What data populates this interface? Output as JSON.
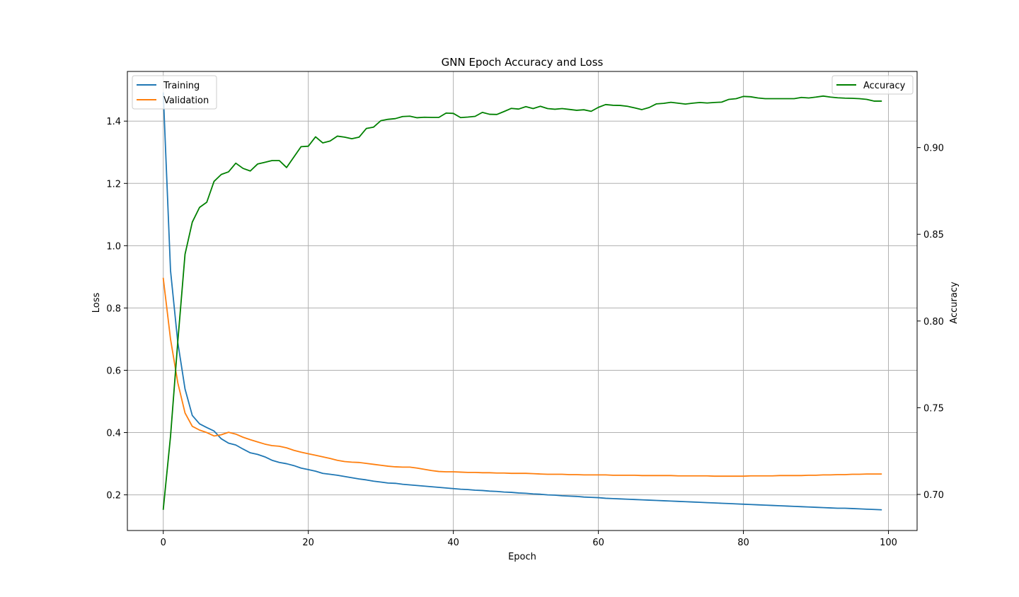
{
  "chart_data": {
    "type": "line",
    "title": "GNN Epoch Accuracy and Loss",
    "xlabel": "Epoch",
    "ylabel_left": "Loss",
    "ylabel_right": "Accuracy",
    "xlim": [
      -4.95,
      103.95
    ],
    "ylim_left": [
      0.0855,
      1.5595
    ],
    "ylim_right": [
      0.6792,
      0.9439
    ],
    "xticks": [
      0,
      20,
      40,
      60,
      80,
      100
    ],
    "yticks_left": [
      0.2,
      0.4,
      0.6,
      0.8,
      1.0,
      1.2,
      1.4
    ],
    "yticks_right": [
      0.7,
      0.75,
      0.8,
      0.85,
      0.9
    ],
    "grid": true,
    "legend_left": {
      "placement": "top-left",
      "entries": [
        "Training",
        "Validation"
      ]
    },
    "legend_right": {
      "placement": "top-right",
      "entries": [
        "Accuracy"
      ]
    },
    "series": [
      {
        "name": "Training",
        "axis": "left",
        "color": "#1f77b4",
        "values": [
          1.49,
          0.92,
          0.69,
          0.54,
          0.455,
          0.428,
          0.416,
          0.405,
          0.38,
          0.366,
          0.36,
          0.347,
          0.335,
          0.33,
          0.322,
          0.311,
          0.304,
          0.3,
          0.294,
          0.286,
          0.281,
          0.276,
          0.269,
          0.266,
          0.263,
          0.259,
          0.255,
          0.251,
          0.248,
          0.244,
          0.241,
          0.238,
          0.237,
          0.234,
          0.232,
          0.23,
          0.228,
          0.226,
          0.224,
          0.222,
          0.22,
          0.218,
          0.217,
          0.215,
          0.214,
          0.212,
          0.211,
          0.209,
          0.208,
          0.206,
          0.205,
          0.203,
          0.202,
          0.2,
          0.199,
          0.197,
          0.196,
          0.195,
          0.193,
          0.192,
          0.191,
          0.189,
          0.188,
          0.187,
          0.186,
          0.185,
          0.184,
          0.183,
          0.182,
          0.181,
          0.18,
          0.179,
          0.178,
          0.177,
          0.176,
          0.175,
          0.174,
          0.173,
          0.172,
          0.171,
          0.17,
          0.169,
          0.168,
          0.167,
          0.166,
          0.165,
          0.164,
          0.163,
          0.162,
          0.161,
          0.16,
          0.159,
          0.158,
          0.157,
          0.157,
          0.156,
          0.155,
          0.154,
          0.153,
          0.152
        ]
      },
      {
        "name": "Validation",
        "axis": "left",
        "color": "#ff7f0e",
        "values": [
          0.895,
          0.7,
          0.56,
          0.463,
          0.42,
          0.408,
          0.4,
          0.389,
          0.393,
          0.401,
          0.395,
          0.385,
          0.377,
          0.37,
          0.363,
          0.358,
          0.356,
          0.351,
          0.343,
          0.337,
          0.332,
          0.327,
          0.322,
          0.317,
          0.311,
          0.307,
          0.305,
          0.304,
          0.301,
          0.298,
          0.295,
          0.292,
          0.29,
          0.289,
          0.289,
          0.286,
          0.282,
          0.278,
          0.275,
          0.274,
          0.274,
          0.273,
          0.272,
          0.272,
          0.271,
          0.271,
          0.27,
          0.27,
          0.269,
          0.269,
          0.269,
          0.268,
          0.267,
          0.266,
          0.266,
          0.266,
          0.265,
          0.265,
          0.264,
          0.264,
          0.264,
          0.264,
          0.263,
          0.263,
          0.263,
          0.263,
          0.262,
          0.262,
          0.262,
          0.262,
          0.262,
          0.261,
          0.261,
          0.261,
          0.261,
          0.261,
          0.26,
          0.26,
          0.26,
          0.26,
          0.26,
          0.261,
          0.261,
          0.261,
          0.261,
          0.262,
          0.262,
          0.262,
          0.262,
          0.263,
          0.263,
          0.264,
          0.264,
          0.265,
          0.265,
          0.266,
          0.266,
          0.267,
          0.267,
          0.267
        ]
      },
      {
        "name": "Accuracy",
        "axis": "right",
        "color": "#008000",
        "values": [
          0.6915,
          0.7335,
          0.788,
          0.8385,
          0.857,
          0.8655,
          0.8685,
          0.8805,
          0.8845,
          0.886,
          0.891,
          0.888,
          0.8865,
          0.8905,
          0.8915,
          0.8925,
          0.8925,
          0.8885,
          0.8945,
          0.9005,
          0.9008,
          0.9062,
          0.9027,
          0.9038,
          0.9066,
          0.906,
          0.9051,
          0.906,
          0.911,
          0.9118,
          0.9155,
          0.9163,
          0.9167,
          0.9179,
          0.9181,
          0.9172,
          0.9175,
          0.9174,
          0.9174,
          0.9199,
          0.9197,
          0.9173,
          0.9176,
          0.918,
          0.9203,
          0.9192,
          0.9191,
          0.9208,
          0.9226,
          0.9222,
          0.9236,
          0.9225,
          0.9238,
          0.9225,
          0.9221,
          0.9225,
          0.922,
          0.9215,
          0.9218,
          0.9209,
          0.9232,
          0.9248,
          0.9244,
          0.9243,
          0.9238,
          0.9229,
          0.9219,
          0.9231,
          0.9252,
          0.9255,
          0.9261,
          0.9256,
          0.9251,
          0.9256,
          0.926,
          0.9257,
          0.926,
          0.9262,
          0.9278,
          0.9282,
          0.9295,
          0.9293,
          0.9286,
          0.9282,
          0.9282,
          0.9282,
          0.9282,
          0.9282,
          0.9289,
          0.9286,
          0.9291,
          0.9297,
          0.9291,
          0.9287,
          0.9285,
          0.9284,
          0.9282,
          0.9278,
          0.9268,
          0.9268
        ]
      }
    ]
  }
}
